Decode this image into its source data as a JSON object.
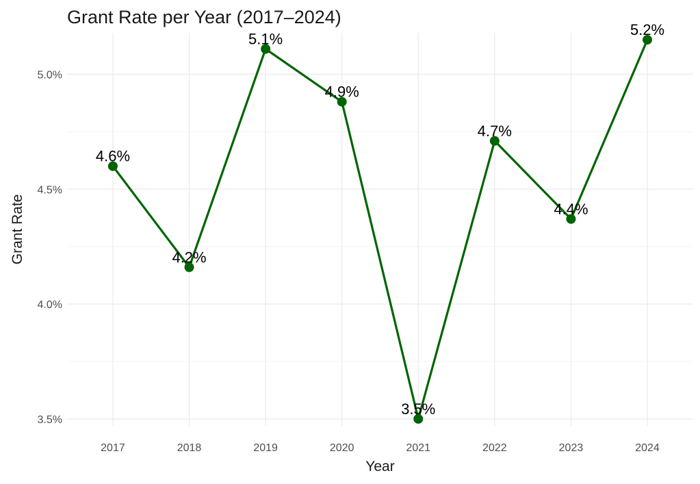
{
  "chart_data": {
    "type": "line",
    "title": "Grant Rate per Year (2017–2024)",
    "xlabel": "Year",
    "ylabel": "Grant Rate",
    "categories": [
      "2017",
      "2018",
      "2019",
      "2020",
      "2021",
      "2022",
      "2023",
      "2024"
    ],
    "values": [
      4.6,
      4.16,
      5.11,
      4.88,
      3.5,
      4.71,
      4.37,
      5.15
    ],
    "data_labels": [
      "4.6%",
      "4.2%",
      "5.1%",
      "4.9%",
      "3.5%",
      "4.7%",
      "4.4%",
      "5.2%"
    ],
    "y_ticks": [
      3.5,
      4.0,
      4.5,
      5.0
    ],
    "y_tick_labels": [
      "3.5%",
      "4.0%",
      "4.5%",
      "5.0%"
    ],
    "ylim": [
      3.47,
      5.18
    ],
    "grid": true,
    "legend": "none",
    "colors": {
      "line": "#006400",
      "point": "#006400"
    }
  }
}
